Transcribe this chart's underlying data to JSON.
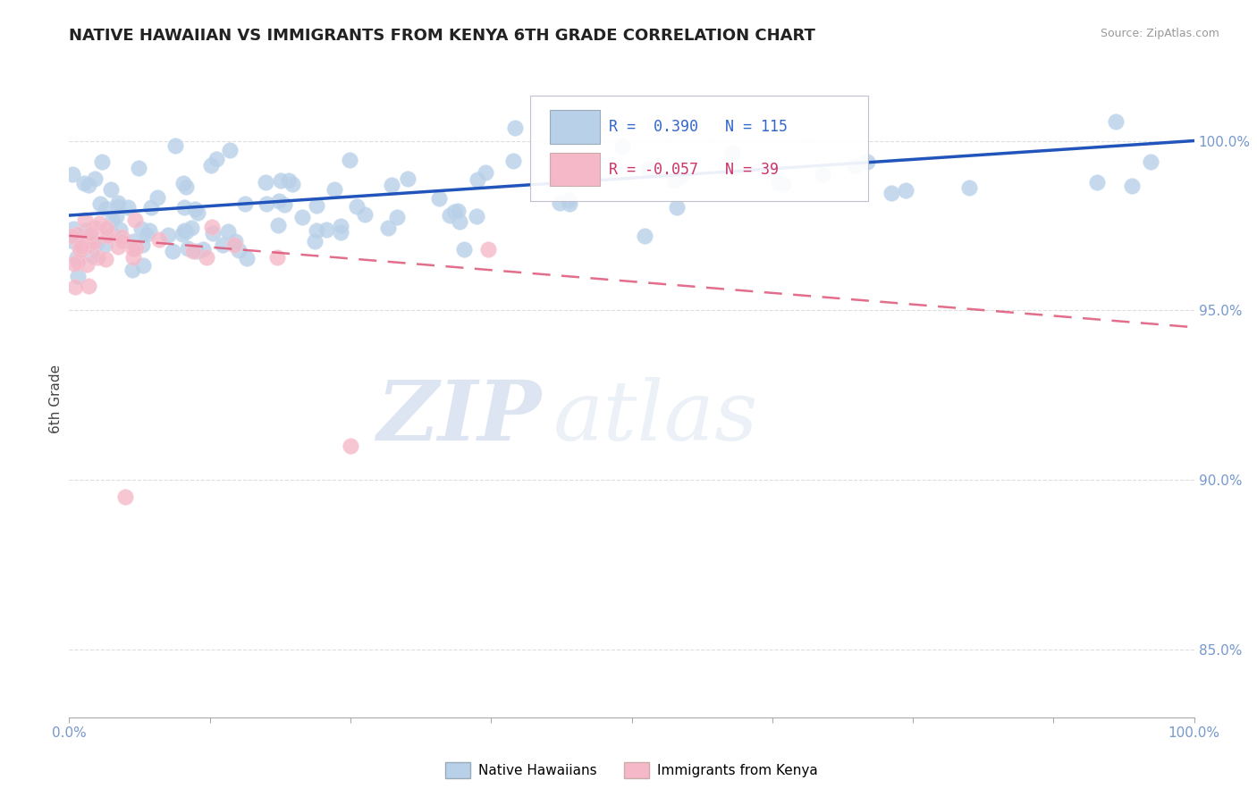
{
  "title": "NATIVE HAWAIIAN VS IMMIGRANTS FROM KENYA 6TH GRADE CORRELATION CHART",
  "source": "Source: ZipAtlas.com",
  "ylabel": "6th Grade",
  "y_ticks": [
    85.0,
    90.0,
    95.0,
    100.0
  ],
  "xmin": 0.0,
  "xmax": 100.0,
  "ymin": 83.0,
  "ymax": 101.8,
  "blue_R": 0.39,
  "blue_N": 115,
  "pink_R": -0.057,
  "pink_N": 39,
  "blue_color": "#b8d0e8",
  "blue_edge_color": "#c8dcf0",
  "blue_line_color": "#2255bb",
  "pink_color": "#f4b8c8",
  "pink_edge_color": "#f8ccd8",
  "pink_line_color": "#dd5577",
  "legend_label_blue": "Native Hawaiians",
  "legend_label_pink": "Immigrants from Kenya",
  "watermark_zip": "ZIP",
  "watermark_atlas": "atlas",
  "background_color": "#ffffff",
  "grid_color": "#dddddd",
  "tick_color": "#7799cc",
  "blue_line_y0": 97.8,
  "blue_line_y1": 100.0,
  "pink_line_y0": 97.2,
  "pink_line_y1": 94.5
}
